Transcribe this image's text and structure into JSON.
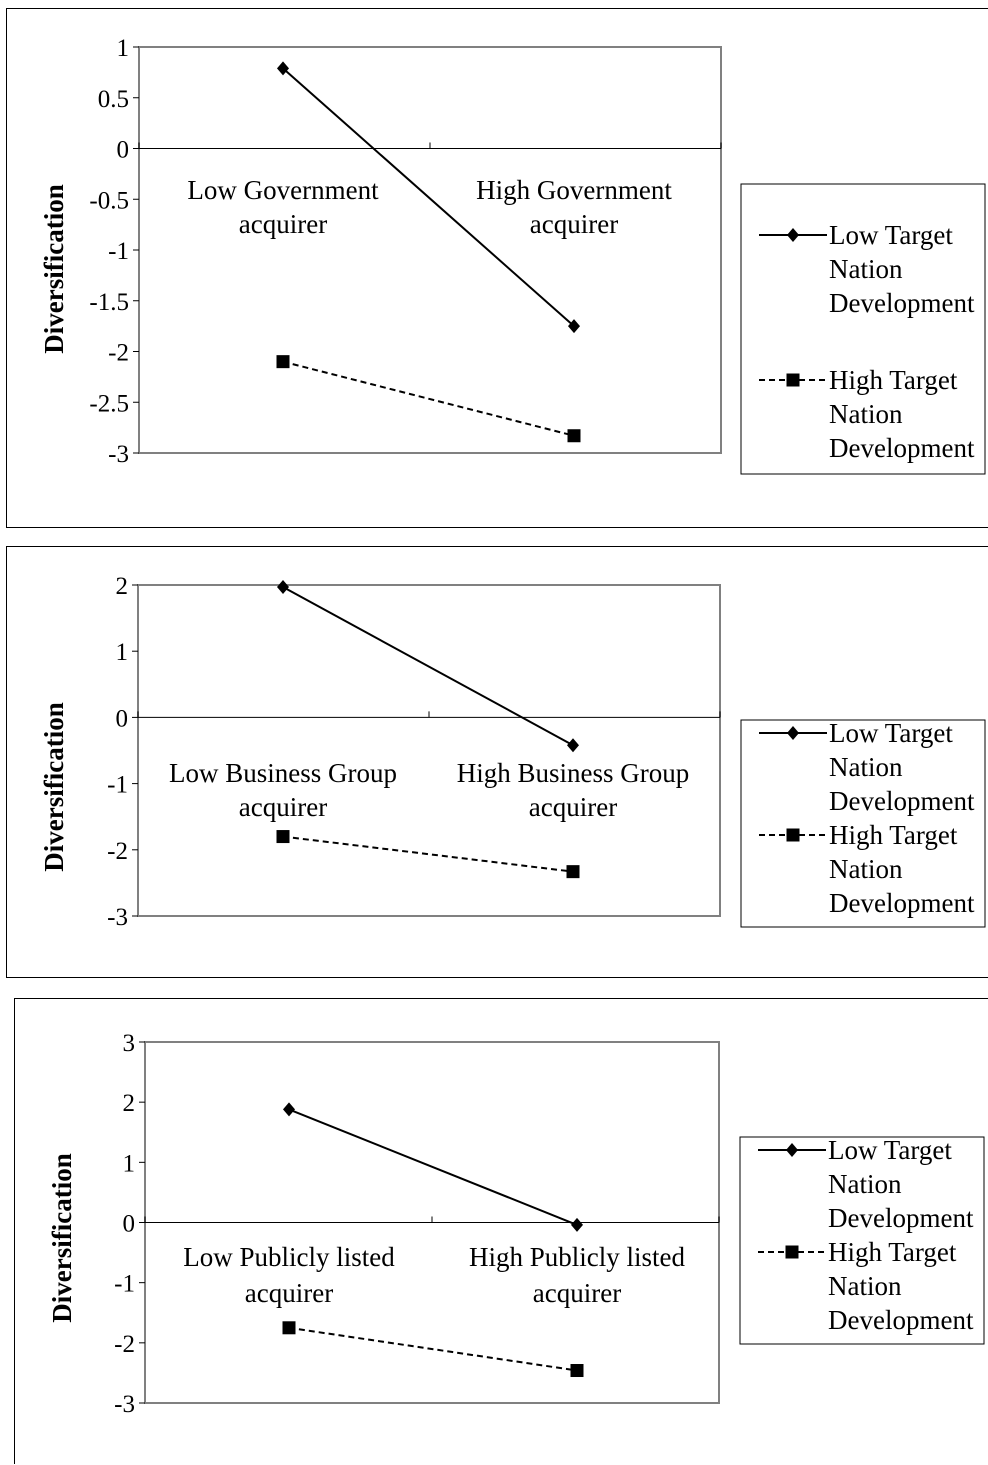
{
  "chart_data": [
    {
      "type": "line",
      "categories": [
        "Low Government acquirer",
        "High Government acquirer"
      ],
      "category_lines": [
        [
          "Low Government",
          "acquirer"
        ],
        [
          "High Government",
          "acquirer"
        ]
      ],
      "ylabel": "Diversification",
      "ylim": [
        -3,
        1
      ],
      "yticks": [
        1,
        0.5,
        0,
        -0.5,
        -1,
        -1.5,
        -2,
        -2.5,
        -3
      ],
      "ytick_labels": [
        "1",
        "0.5",
        "0",
        "-0.5",
        "-1",
        "-1.5",
        "-2",
        "-2.5",
        "-3"
      ],
      "series": [
        {
          "name": "Low Target Nation Development",
          "values": [
            0.79,
            -1.75
          ],
          "marker": "diamond",
          "line": "solid"
        },
        {
          "name": "High Target Nation Development",
          "values": [
            -2.1,
            -2.83
          ],
          "marker": "square",
          "line": "dashed"
        }
      ],
      "legend": {
        "position": "right",
        "entries": [
          [
            "Low Target",
            "Nation",
            "Development"
          ],
          [
            "High Target",
            "Nation",
            "Development"
          ]
        ]
      }
    },
    {
      "type": "line",
      "categories": [
        "Low Business Group acquirer",
        "High Business Group acquirer"
      ],
      "category_lines": [
        [
          "Low Business Group",
          "acquirer"
        ],
        [
          "High Business Group",
          "acquirer"
        ]
      ],
      "ylabel": "Diversification",
      "ylim": [
        -3,
        2
      ],
      "yticks": [
        2,
        1,
        0,
        -1,
        -2,
        -3
      ],
      "ytick_labels": [
        "2",
        "1",
        "0",
        "-1",
        "-2",
        "-3"
      ],
      "series": [
        {
          "name": "Low Target Nation Development",
          "values": [
            1.97,
            -0.42
          ],
          "marker": "diamond",
          "line": "solid"
        },
        {
          "name": "High Target Nation Development",
          "values": [
            -1.8,
            -2.33
          ],
          "marker": "square",
          "line": "dashed"
        }
      ],
      "legend": {
        "position": "right",
        "entries": [
          [
            "Low Target",
            "Nation",
            "Development"
          ],
          [
            "High Target",
            "Nation",
            "Development"
          ]
        ]
      }
    },
    {
      "type": "line",
      "categories": [
        "Low Publicly listed acquirer",
        "High Publicly listed acquirer"
      ],
      "category_lines": [
        [
          "Low Publicly listed",
          "acquirer"
        ],
        [
          "High Publicly listed",
          "acquirer"
        ]
      ],
      "ylabel": "Diversification",
      "ylim": [
        -3,
        3
      ],
      "yticks": [
        3,
        2,
        1,
        0,
        -1,
        -2,
        -3
      ],
      "ytick_labels": [
        "3",
        "2",
        "1",
        "0",
        "-1",
        "-2",
        "-3"
      ],
      "series": [
        {
          "name": "Low Target Nation Development",
          "values": [
            1.88,
            -0.04
          ],
          "marker": "diamond",
          "line": "solid"
        },
        {
          "name": "High Target Nation Development",
          "values": [
            -1.75,
            -2.46
          ],
          "marker": "square",
          "line": "dashed"
        }
      ],
      "legend": {
        "position": "right",
        "entries": [
          [
            "Low Target",
            "Nation",
            "Development"
          ],
          [
            "High Target",
            "Nation",
            "Development"
          ]
        ]
      }
    }
  ]
}
